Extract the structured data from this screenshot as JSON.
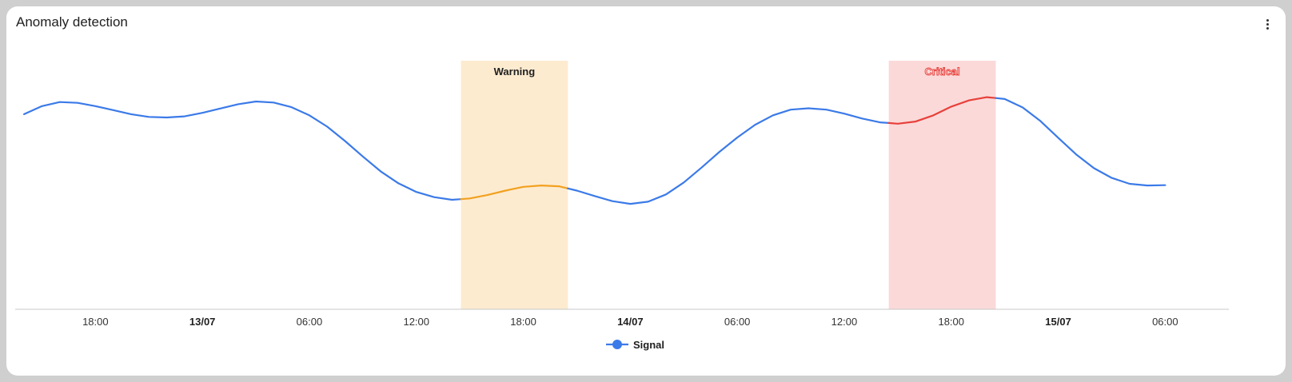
{
  "card": {
    "title": "Anomaly detection",
    "menu_icon": "more-vert-icon"
  },
  "colors": {
    "signal": "#3b7ae8",
    "warning": "#f2a11f",
    "critical": "#e8403a",
    "warning_band": "#fdebd0",
    "critical_band": "#fbd9d9"
  },
  "chart_data": {
    "type": "line",
    "x_start": "12/07 14:00",
    "x_step_hours": 1,
    "series": [
      {
        "name": "Signal",
        "values": [
          0.72,
          0.75,
          0.765,
          0.762,
          0.75,
          0.735,
          0.72,
          0.71,
          0.708,
          0.712,
          0.725,
          0.741,
          0.757,
          0.767,
          0.763,
          0.746,
          0.716,
          0.674,
          0.621,
          0.564,
          0.509,
          0.465,
          0.433,
          0.414,
          0.404,
          0.409,
          0.422,
          0.438,
          0.452,
          0.457,
          0.454,
          0.438,
          0.418,
          0.399,
          0.389,
          0.397,
          0.424,
          0.468,
          0.523,
          0.581,
          0.634,
          0.681,
          0.716,
          0.737,
          0.742,
          0.737,
          0.722,
          0.704,
          0.69,
          0.685,
          0.693,
          0.716,
          0.748,
          0.771,
          0.783,
          0.776,
          0.745,
          0.695,
          0.633,
          0.572,
          0.521,
          0.485,
          0.463,
          0.457,
          0.458
        ]
      }
    ],
    "x_ticks": [
      {
        "label": "18:00",
        "bold": false,
        "hour": 4
      },
      {
        "label": "13/07",
        "bold": true,
        "hour": 10
      },
      {
        "label": "06:00",
        "bold": false,
        "hour": 16
      },
      {
        "label": "12:00",
        "bold": false,
        "hour": 22
      },
      {
        "label": "18:00",
        "bold": false,
        "hour": 28
      },
      {
        "label": "14/07",
        "bold": true,
        "hour": 34
      },
      {
        "label": "06:00",
        "bold": false,
        "hour": 40
      },
      {
        "label": "12:00",
        "bold": false,
        "hour": 46
      },
      {
        "label": "18:00",
        "bold": false,
        "hour": 52
      },
      {
        "label": "15/07",
        "bold": true,
        "hour": 58
      },
      {
        "label": "06:00",
        "bold": false,
        "hour": 64
      }
    ],
    "bands": [
      {
        "label": "Warning",
        "start_hour": 24.5,
        "end_hour": 30.5,
        "level": "warning"
      },
      {
        "label": "Critical",
        "start_hour": 48.5,
        "end_hour": 54.5,
        "level": "critical"
      }
    ],
    "ylim": [
      0,
      1
    ],
    "grid": false,
    "legend": {
      "position": "bottom",
      "entries": [
        "Signal"
      ]
    }
  }
}
